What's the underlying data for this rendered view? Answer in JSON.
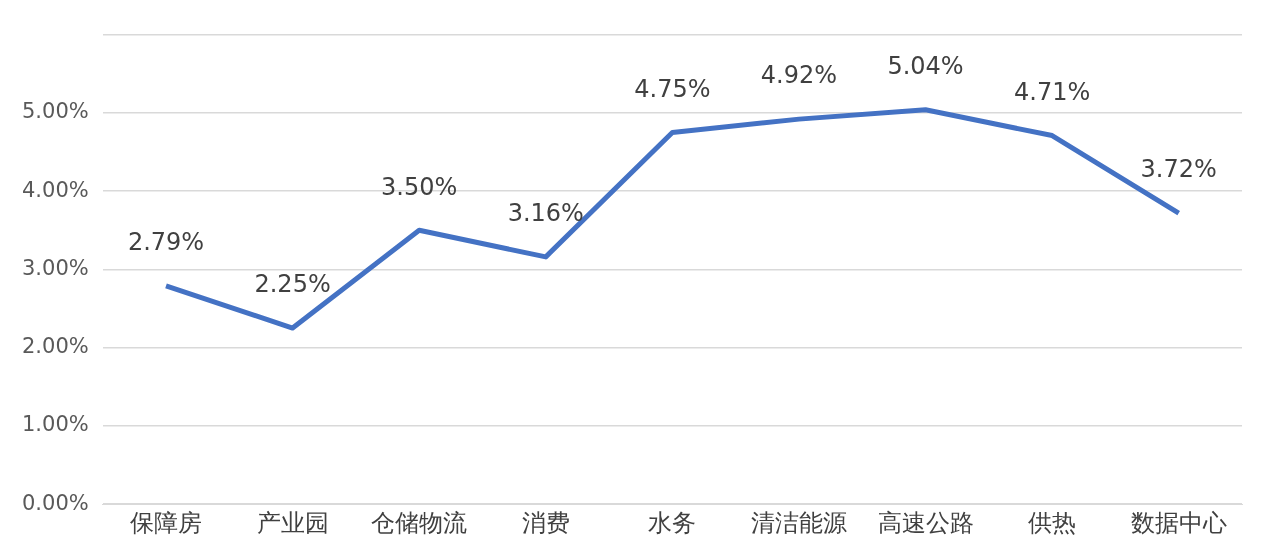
{
  "chart_data": {
    "type": "line",
    "categories": [
      "保障房",
      "产业园",
      "仓储物流",
      "消费",
      "水务",
      "清洁能源",
      "高速公路",
      "供热",
      "数据中心"
    ],
    "series": [
      {
        "color": "#4472c4",
        "values": [
          2.79,
          2.25,
          3.5,
          3.16,
          4.75,
          4.92,
          5.04,
          4.71,
          3.72
        ],
        "value_labels": [
          "2.79%",
          "2.25%",
          "3.50%",
          "3.16%",
          "4.75%",
          "4.92%",
          "5.04%",
          "4.71%",
          "3.72%"
        ]
      }
    ],
    "ylim": [
      0,
      6
    ],
    "yticks": [
      {
        "value": 0,
        "label": "0.00%"
      },
      {
        "value": 1,
        "label": "1.00%"
      },
      {
        "value": 2,
        "label": "2.00%"
      },
      {
        "value": 3,
        "label": "3.00%"
      },
      {
        "value": 4,
        "label": "4.00%"
      },
      {
        "value": 5,
        "label": "5.00%"
      },
      {
        "value": 6,
        "label": null
      }
    ],
    "grid": "y",
    "legend": false,
    "marker": "none",
    "line_style": "solid"
  }
}
